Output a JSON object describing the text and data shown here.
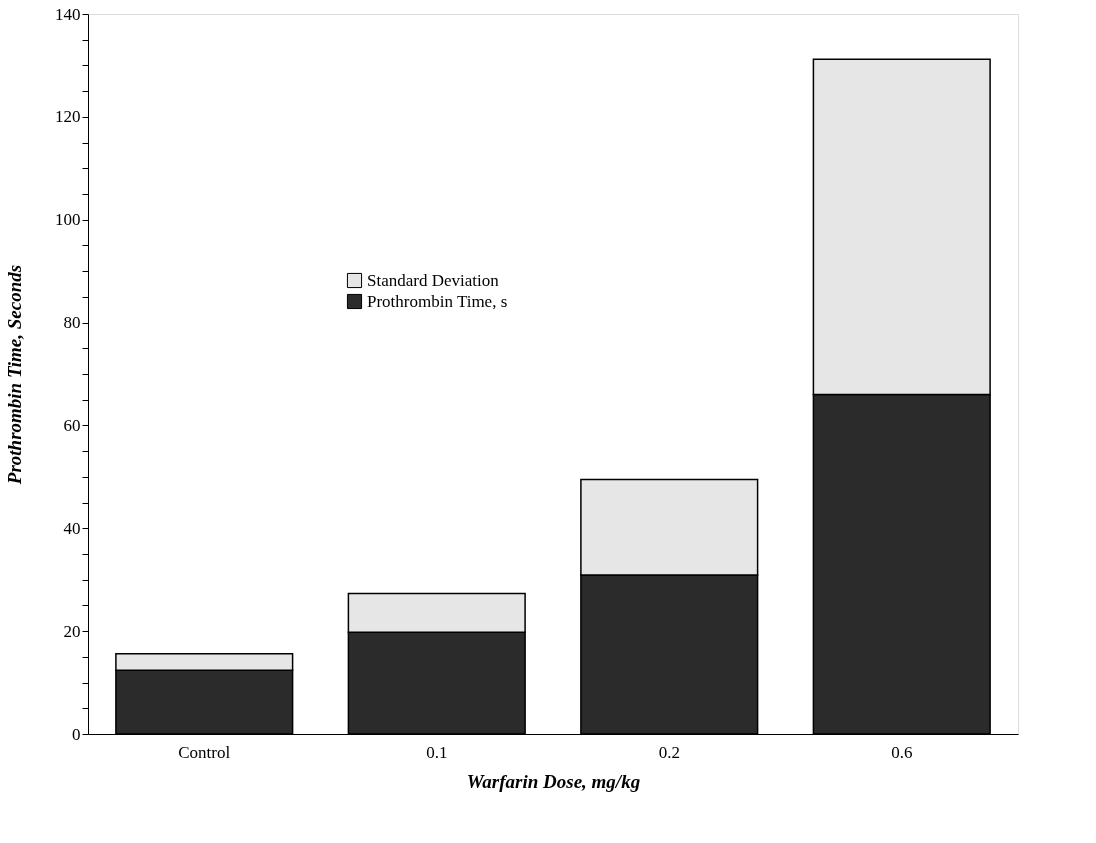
{
  "chart_data": {
    "type": "bar",
    "stacked": true,
    "xlabel": "Warfarin Dose, mg/kg",
    "ylabel": "Prothrombin Time, Seconds",
    "categories": [
      "Control",
      "0.1",
      "0.2",
      "0.6"
    ],
    "series": [
      {
        "name": "Prothrombin Time, s",
        "color": "#2b2b2b",
        "values": [
          12.4,
          19.8,
          30.9,
          66.0
        ]
      },
      {
        "name": "Standard Deviation",
        "color": "#e6e6e6",
        "values": [
          3.2,
          7.5,
          18.6,
          65.2
        ]
      }
    ],
    "ylim": [
      0,
      140
    ],
    "yticks": [
      0,
      {
        "value": 5,
        "label": null
      },
      {
        "value": 10,
        "label": null
      },
      {
        "value": 15,
        "label": null
      },
      20,
      {
        "value": 25,
        "label": null
      },
      {
        "value": 30,
        "label": null
      },
      {
        "value": 35,
        "label": null
      },
      40,
      {
        "value": 45,
        "label": null
      },
      {
        "value": 50,
        "label": null
      },
      {
        "value": 55,
        "label": null
      },
      60,
      {
        "value": 65,
        "label": null
      },
      {
        "value": 70,
        "label": null
      },
      {
        "value": 75,
        "label": null
      },
      80,
      {
        "value": 85,
        "label": null
      },
      {
        "value": 90,
        "label": null
      },
      {
        "value": 95,
        "label": null
      },
      100,
      {
        "value": 105,
        "label": null
      },
      {
        "value": 110,
        "label": null
      },
      {
        "value": 115,
        "label": null
      },
      120,
      {
        "value": 125,
        "label": null
      },
      {
        "value": 130,
        "label": null
      },
      {
        "value": 135,
        "label": null
      },
      140
    ],
    "grid": false,
    "legend": "top left"
  }
}
